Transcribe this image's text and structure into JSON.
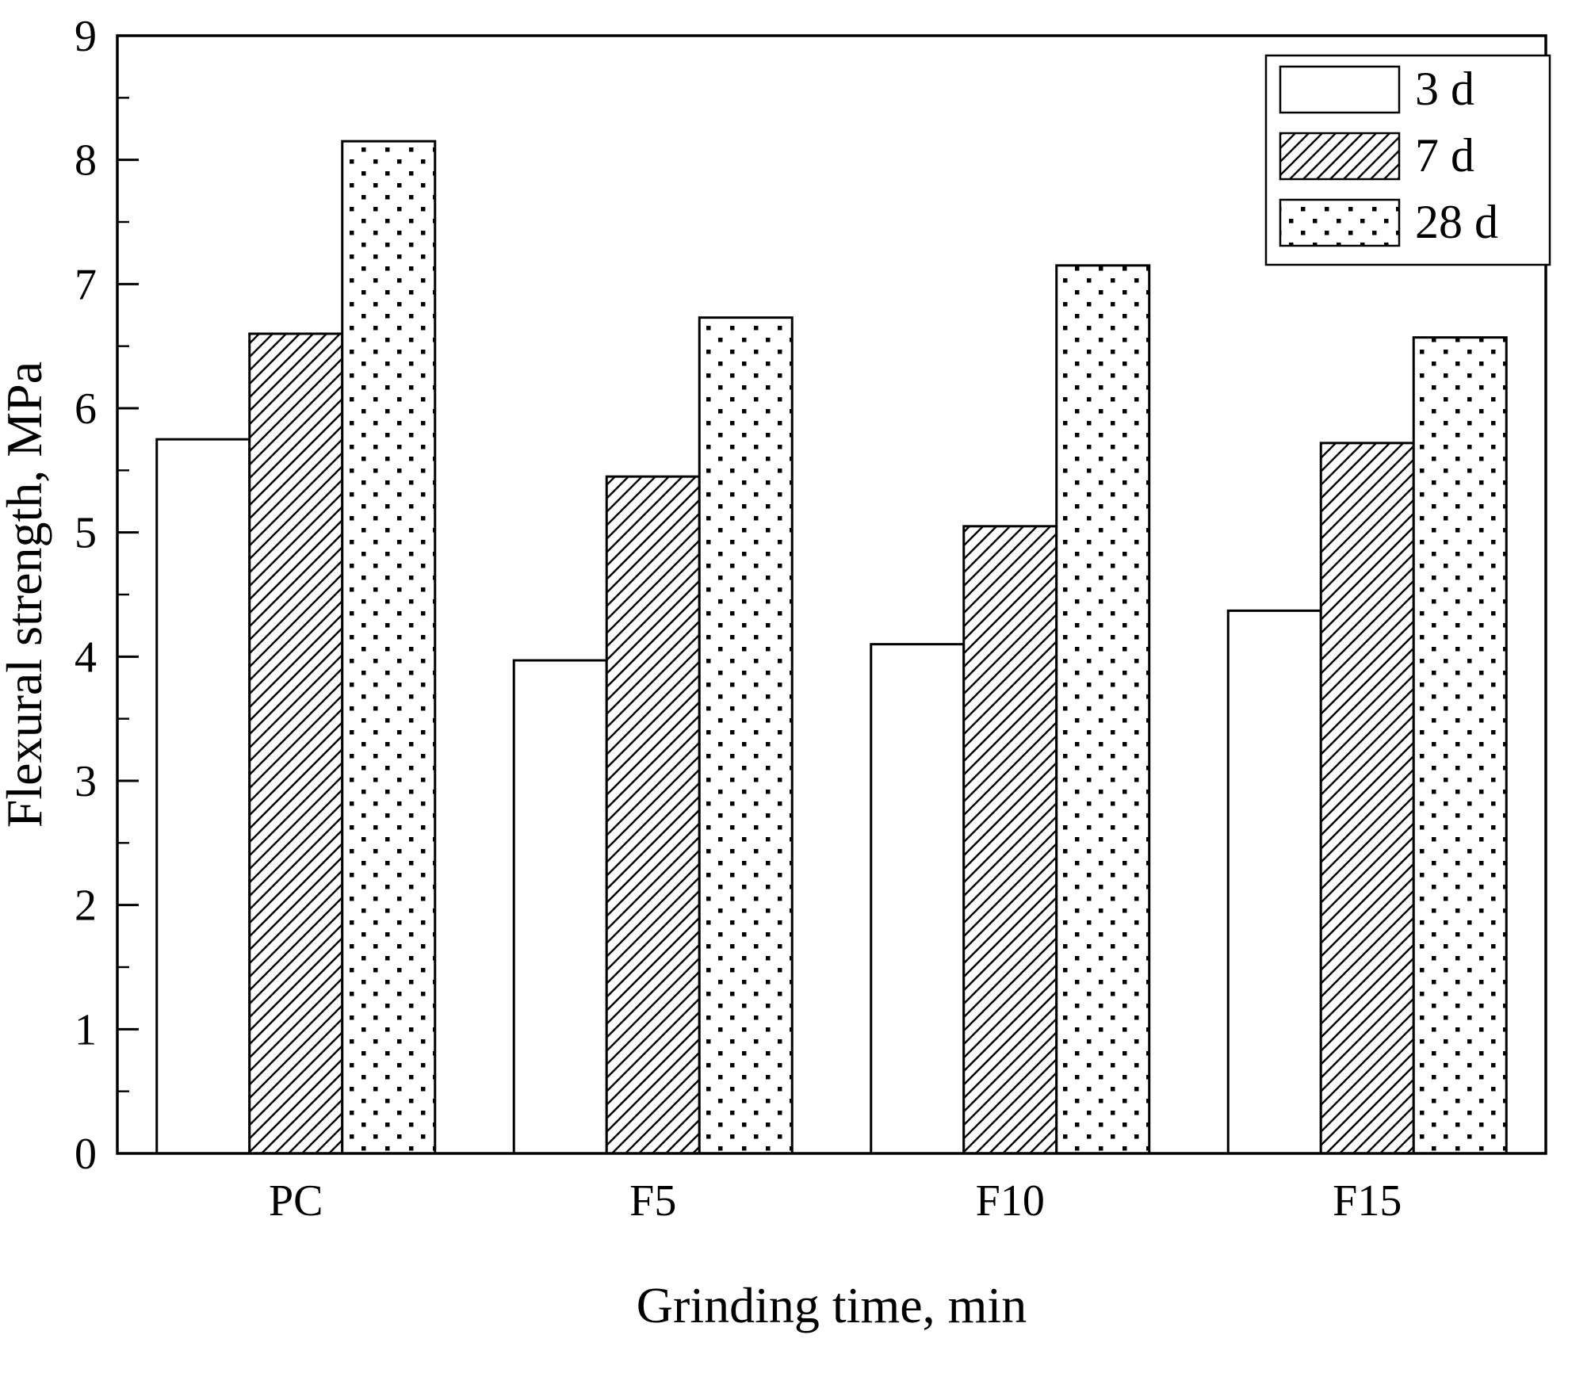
{
  "chart_data": {
    "type": "bar",
    "title": "",
    "xlabel": "Grinding time, min",
    "ylabel": "Flexural strength, MPa",
    "categories": [
      "PC",
      "F5",
      "F10",
      "F15"
    ],
    "series": [
      {
        "name": "3 d",
        "pattern": "solid-white",
        "values": [
          5.75,
          3.97,
          4.1,
          4.37
        ]
      },
      {
        "name": "7 d",
        "pattern": "diagonal-hatch",
        "values": [
          6.6,
          5.45,
          5.05,
          5.72
        ]
      },
      {
        "name": "28 d",
        "pattern": "dots",
        "values": [
          8.15,
          6.73,
          7.15,
          6.57
        ]
      }
    ],
    "ylim": [
      0,
      9
    ],
    "y_major_step": 1,
    "y_minor_step": 0.5,
    "y_tick_labels": [
      "0",
      "1",
      "2",
      "3",
      "4",
      "5",
      "6",
      "7",
      "8",
      "9"
    ],
    "legend_position": "top-right",
    "grid": false,
    "colors": {
      "stroke": "#000000",
      "background": "#ffffff"
    }
  }
}
